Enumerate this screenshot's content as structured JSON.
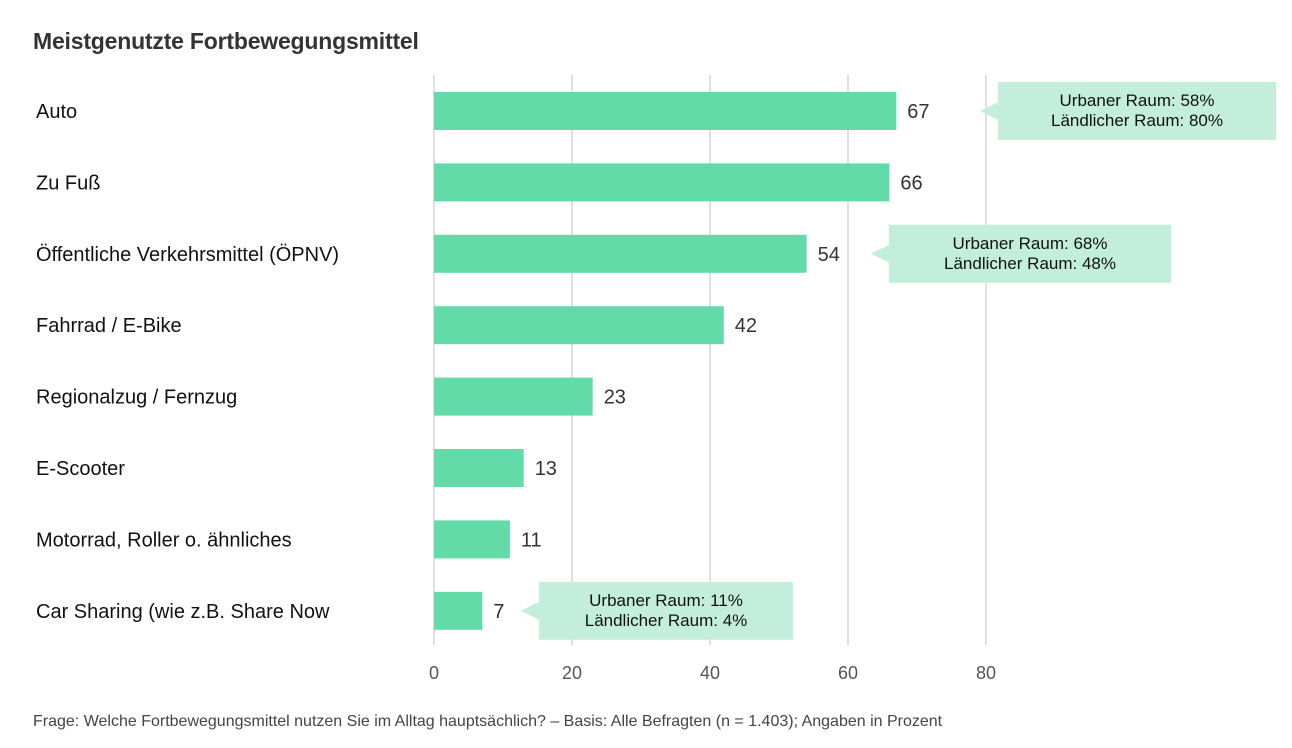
{
  "chart_data": {
    "type": "bar",
    "orientation": "horizontal",
    "title": "Meistgenutzte Fortbewegungsmittel",
    "categories": [
      "Auto",
      "Zu Fuß",
      "Öffentliche Verkehrsmittel (ÖPNV)",
      "Fahrrad / E-Bike",
      "Regionalzug / Fernzug",
      "E-Scooter",
      "Motorrad, Roller o. ähnliches",
      "Car Sharing (wie z.B. Share Now"
    ],
    "values": [
      67,
      66,
      54,
      42,
      23,
      13,
      11,
      7
    ],
    "xlim": [
      0,
      80
    ],
    "xticks": [
      0,
      20,
      40,
      60,
      80
    ],
    "grid": true,
    "bar_color": "#62dba8",
    "annotations": [
      {
        "category_index": 0,
        "lines": [
          "Urbaner Raum: 58%",
          "Ländlicher Raum: 80%"
        ]
      },
      {
        "category_index": 2,
        "lines": [
          "Urbaner Raum: 68%",
          "Ländlicher Raum: 48%"
        ]
      },
      {
        "category_index": 7,
        "lines": [
          "Urbaner Raum: 11%",
          "Ländlicher Raum: 4%"
        ]
      }
    ],
    "annotation_color": "#c2eedb",
    "footnote": "Frage: Welche Fortbewegungsmittel nutzen Sie im Alltag hauptsächlich? – Basis: Alle Befragten (n = 1.403); Angaben in Prozent"
  }
}
